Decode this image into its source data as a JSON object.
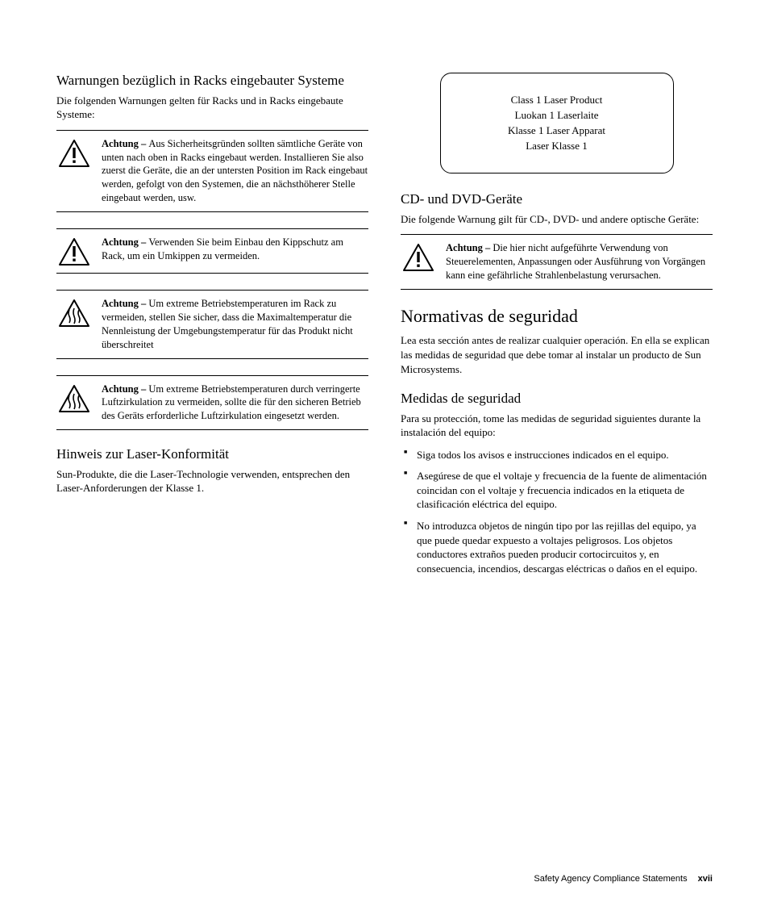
{
  "left": {
    "h2_racks": "Warnungen bezüglich in Racks eingebauter Systeme",
    "p_racks": "Die folgenden Warnungen gelten für Racks und in Racks eingebaute Systeme:",
    "warnings": [
      {
        "icon": "caution",
        "bold": "Achtung – ",
        "text": "Aus Sicherheitsgründen sollten sämtliche Geräte von unten nach oben in Racks eingebaut werden. Installieren Sie also zuerst die Geräte, die an der untersten Position im Rack eingebaut werden, gefolgt von den Systemen, die an nächsthöherer Stelle eingebaut werden, usw."
      },
      {
        "icon": "caution",
        "bold": "Achtung – ",
        "text": "Verwenden Sie beim Einbau den Kippschutz am Rack, um ein Umkippen zu vermeiden."
      },
      {
        "icon": "heat",
        "bold": "Achtung – ",
        "text": "Um extreme Betriebstemperaturen im Rack zu vermeiden, stellen Sie sicher, dass die Maximaltemperatur die Nennleistung der Umgebungstemperatur für das Produkt nicht überschreitet"
      },
      {
        "icon": "heat",
        "bold": "Achtung – ",
        "text": "Um extreme Betriebstemperaturen durch verringerte Luftzirkulation zu vermeiden, sollte die für den sicheren Betrieb des Geräts erforderliche Luftzirkulation eingesetzt werden."
      }
    ],
    "h2_laser": "Hinweis zur Laser-Konformität",
    "p_laser": "Sun-Produkte, die die Laser-Technologie verwenden, entsprechen den Laser-Anforderungen der Klasse 1."
  },
  "right": {
    "laserbox": {
      "l1": "Class 1 Laser Product",
      "l2": "Luokan 1 Laserlaite",
      "l3": "Klasse 1 Laser Apparat",
      "l4": "Laser Klasse 1"
    },
    "h2_cd": "CD- und DVD-Geräte",
    "p_cd": "Die folgende Warnung gilt für CD-, DVD- und andere optische Geräte:",
    "warning_cd": {
      "bold": "Achtung – ",
      "text": "Die hier nicht aufgeführte Verwendung von Steuerelementen, Anpassungen oder Ausführung von Vorgängen kann eine gefährliche Strahlenbelastung verursachen."
    },
    "h1_norm": "Normativas de seguridad",
    "p_norm": "Lea esta sección antes de realizar cualquier operación. En ella se explican las medidas de seguridad que debe tomar al instalar un producto de Sun Microsystems.",
    "h2_med": "Medidas de seguridad",
    "p_med": "Para su protección, tome las medidas de seguridad siguientes durante la instalación del equipo:",
    "bullets": [
      "Siga todos los avisos e instrucciones indicados en el equipo.",
      "Asegúrese de que el voltaje y frecuencia de la fuente de alimentación coincidan con el voltaje y frecuencia indicados en la etiqueta de clasificación eléctrica del equipo.",
      "No introduzca objetos de ningún tipo por las rejillas del equipo, ya que puede quedar expuesto a voltajes peligrosos. Los objetos conductores extraños pueden producir cortocircuitos y, en consecuencia, incendios, descargas eléctricas o daños en el equipo."
    ]
  },
  "footer": {
    "title": "Safety Agency Compliance Statements",
    "page": "xvii"
  },
  "icons": {
    "caution_svg": "<svg width='40' height='36' viewBox='0 0 40 36'><path d='M20 2 L38 34 L2 34 Z' fill='none' stroke='#000' stroke-width='2' stroke-linejoin='round'/><rect x='18.3' y='11' width='3.4' height='13' fill='#000'/><rect x='18.3' y='26.5' width='3.4' height='3.4' fill='#000'/></svg>",
    "heat_svg": "<svg width='40' height='36' viewBox='0 0 40 36'><path d='M20 2 L38 34 L2 34 Z' fill='none' stroke='#000' stroke-width='2' stroke-linejoin='round'/><path d='M14 14 Q12 18 14 22 Q16 26 14 30' fill='none' stroke='#000' stroke-width='1.6'/><path d='M20 12 Q18 17 20 22 Q22 27 20 31' fill='none' stroke='#000' stroke-width='1.6'/><path d='M26 14 Q24 18 26 22 Q28 26 26 30' fill='none' stroke='#000' stroke-width='1.6'/></svg>"
  }
}
